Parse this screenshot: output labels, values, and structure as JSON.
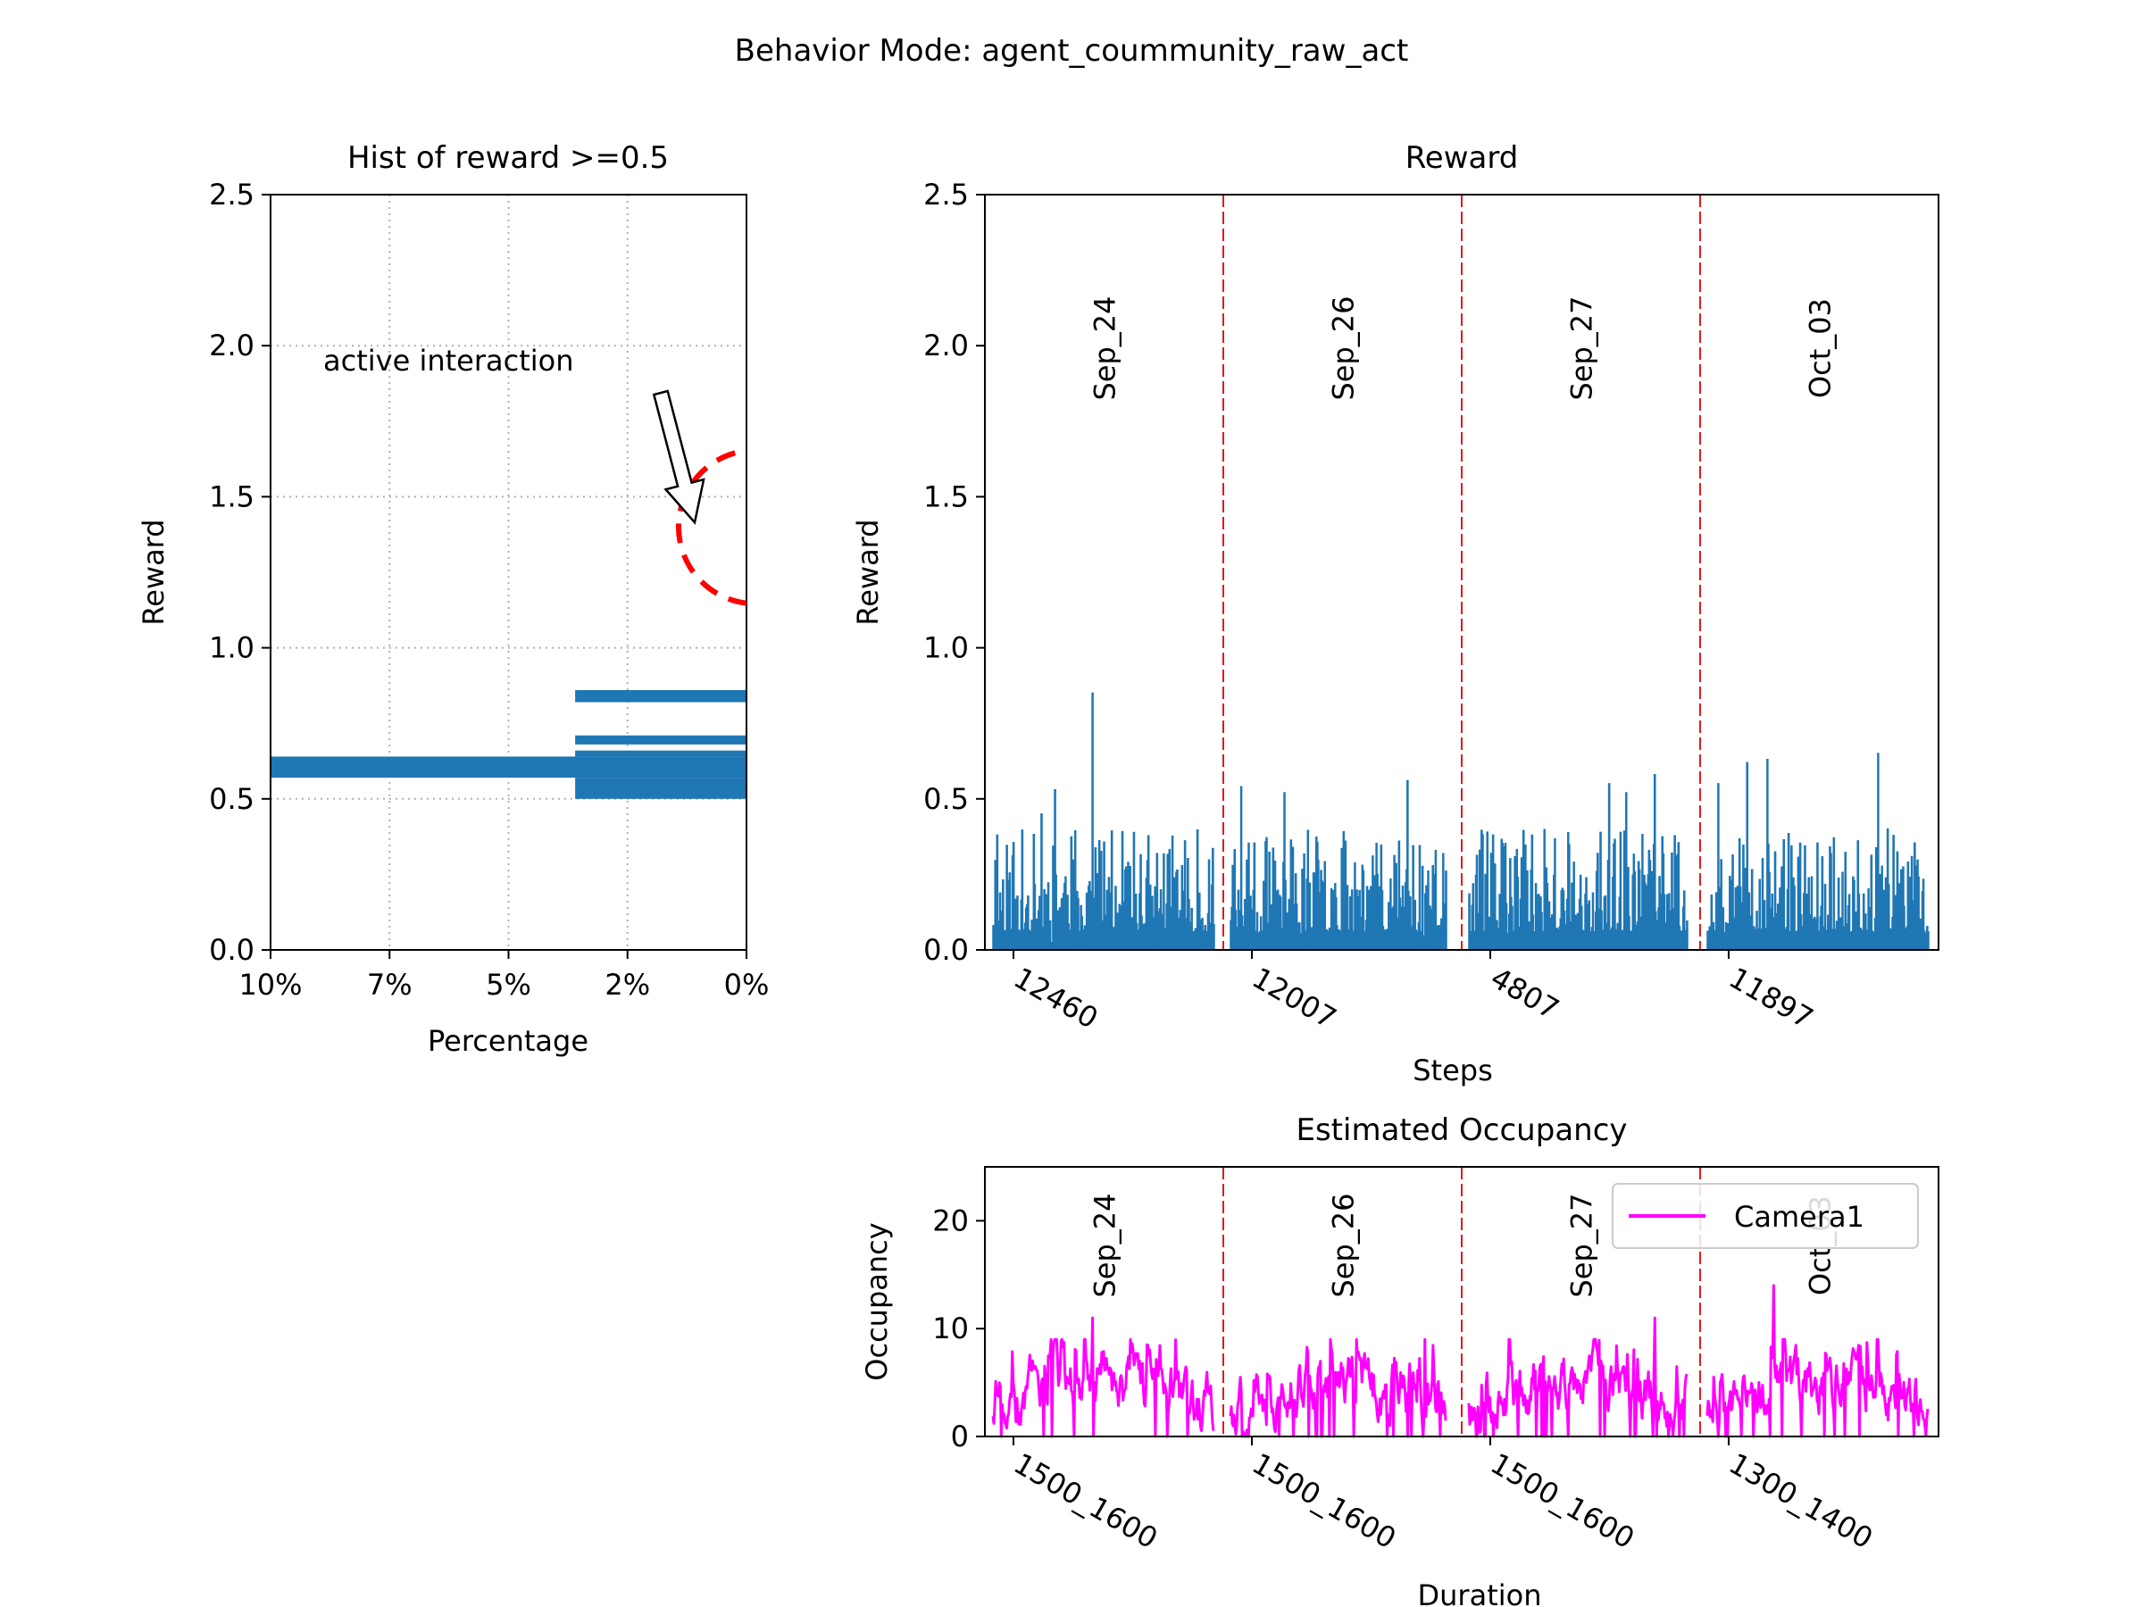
{
  "suptitle": "Behavior Mode: agent_coummunity_raw_act",
  "colors": {
    "bar": "#1f77b4",
    "occupancy": "#ff00ff",
    "divider": "#e41a1c",
    "circle": "#ff0000"
  },
  "chart_data": [
    {
      "id": "hist",
      "type": "bar",
      "orientation": "horizontal",
      "title": "Hist of reward >=0.5",
      "xlabel": "Percentage",
      "ylabel": "Reward",
      "x_ticks": [
        "10%",
        "7%",
        "5%",
        "2%",
        "0%"
      ],
      "x_tick_values": [
        10,
        7.5,
        5,
        2.5,
        0
      ],
      "xlim": [
        10,
        0
      ],
      "ylim": [
        0,
        2.5
      ],
      "y_ticks": [
        "0.0",
        "0.5",
        "1.0",
        "1.5",
        "2.0",
        "2.5"
      ],
      "y_tick_values": [
        0,
        0.5,
        1.0,
        1.5,
        2.0,
        2.5
      ],
      "grid": true,
      "bins": [
        {
          "lo": 0.5,
          "hi": 0.57,
          "pct": 3.6
        },
        {
          "lo": 0.57,
          "hi": 0.64,
          "pct": 10.0
        },
        {
          "lo": 0.64,
          "hi": 0.66,
          "pct": 3.6
        },
        {
          "lo": 0.68,
          "hi": 0.71,
          "pct": 3.6
        },
        {
          "lo": 0.82,
          "hi": 0.86,
          "pct": 3.6
        }
      ],
      "annotation": {
        "text": "active interaction",
        "target_reward": 1.4,
        "circle_center_reward": 1.4
      }
    },
    {
      "id": "reward",
      "type": "bar",
      "title": "Reward",
      "xlabel": "Steps",
      "ylabel": "Reward",
      "ylim": [
        0,
        2.5
      ],
      "y_ticks": [
        "0.0",
        "0.5",
        "1.0",
        "1.5",
        "2.0",
        "2.5"
      ],
      "y_tick_values": [
        0,
        0.5,
        1.0,
        1.5,
        2.0,
        2.5
      ],
      "segments": [
        {
          "date": "Sep_24",
          "tick": "12460",
          "seed": 11,
          "peaks": [
            {
              "f": 0.45,
              "v": 0.85
            },
            {
              "f": 0.28,
              "v": 0.53
            },
            {
              "f": 0.22,
              "v": 0.45
            },
            {
              "f": 0.02,
              "v": 0.38
            }
          ]
        },
        {
          "date": "Sep_26",
          "tick": "12007",
          "seed": 23,
          "peaks": [
            {
              "f": 0.82,
              "v": 0.56
            },
            {
              "f": 0.05,
              "v": 0.54
            },
            {
              "f": 0.25,
              "v": 0.52
            }
          ]
        },
        {
          "date": "Sep_27",
          "tick": "4807",
          "seed": 37,
          "peaks": [
            {
              "f": 0.85,
              "v": 0.58
            },
            {
              "f": 0.64,
              "v": 0.55
            },
            {
              "f": 0.72,
              "v": 0.52
            }
          ]
        },
        {
          "date": "Oct_03",
          "tick": "11897",
          "seed": 53,
          "peaks": [
            {
              "f": 0.77,
              "v": 0.65
            },
            {
              "f": 0.27,
              "v": 0.63
            },
            {
              "f": 0.18,
              "v": 0.62
            },
            {
              "f": 0.05,
              "v": 0.55
            }
          ]
        }
      ]
    },
    {
      "id": "occupancy",
      "type": "line",
      "title": "Estimated Occupancy",
      "xlabel": "Duration",
      "ylabel": "Occupancy",
      "ylim": [
        0,
        25
      ],
      "y_ticks": [
        "0",
        "10",
        "20"
      ],
      "y_tick_values": [
        0,
        10,
        20
      ],
      "legend": {
        "label": "Camera1",
        "position": "top-right"
      },
      "segments": [
        {
          "date": "Sep_24",
          "tick": "1500_1600",
          "seed": 71,
          "peak": {
            "f": 0.45,
            "v": 11
          }
        },
        {
          "date": "Sep_26",
          "tick": "1500_1600",
          "seed": 83,
          "peak": {
            "f": 0.9,
            "v": 9
          }
        },
        {
          "date": "Sep_27",
          "tick": "1500_1600",
          "seed": 97,
          "peak": {
            "f": 0.85,
            "v": 11
          }
        },
        {
          "date": "Oct_03",
          "tick": "1300_1400",
          "seed": 109,
          "peak": {
            "f": 0.3,
            "v": 14
          }
        }
      ]
    }
  ]
}
